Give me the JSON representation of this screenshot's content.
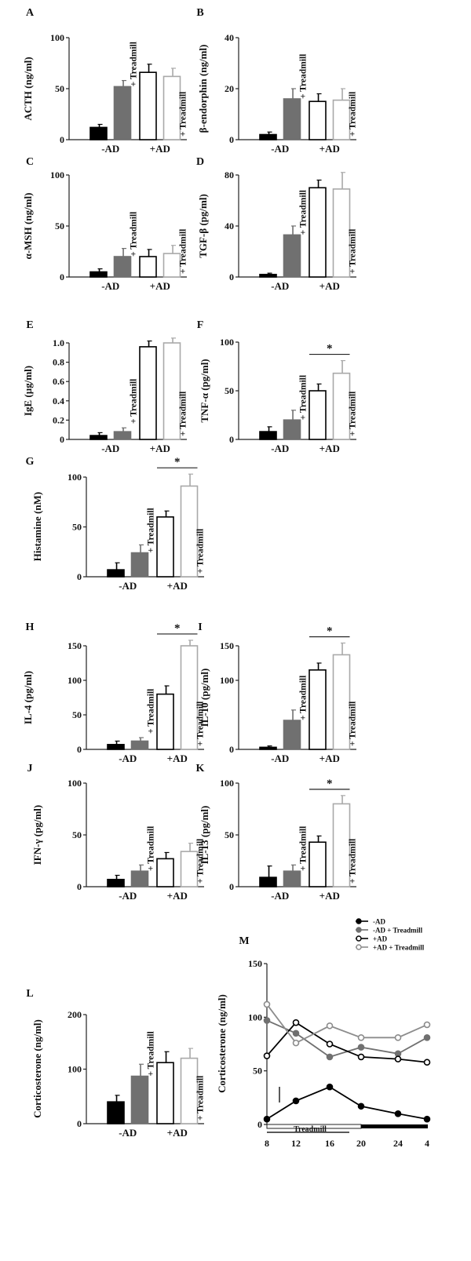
{
  "colors": {
    "black": "#000000",
    "dark_gray": "#707070",
    "mid_gray": "#8c8c8c",
    "light_gray": "#a9a9a9",
    "white": "#ffffff",
    "axis": "#222222"
  },
  "chart_data": [
    {
      "id": "A",
      "type": "bar",
      "panel_label": "A",
      "ylabel": "ACTH (ng/ml)",
      "ylim": [
        0,
        100
      ],
      "yticks": [
        0,
        50,
        100
      ],
      "ytick_labels": [
        "0",
        "50",
        "100"
      ],
      "group_labels": [
        "-AD",
        "+AD"
      ],
      "bar_labels": [
        "",
        "+ Treadmill",
        "",
        "+ Treadmill"
      ],
      "values": [
        12,
        52,
        66,
        62
      ],
      "errors": [
        3,
        6,
        8,
        8
      ],
      "significance": []
    },
    {
      "id": "B",
      "type": "bar",
      "panel_label": "B",
      "ylabel": "β-endorphin (ng/ml)",
      "ylim": [
        0,
        40
      ],
      "yticks": [
        0,
        20,
        40
      ],
      "ytick_labels": [
        "0",
        "20",
        "40"
      ],
      "group_labels": [
        "-AD",
        "+AD"
      ],
      "bar_labels": [
        "",
        "+ Treadmill",
        "",
        "+ Treadmill"
      ],
      "values": [
        2,
        16,
        15,
        15.5
      ],
      "errors": [
        1,
        4,
        3,
        4.5
      ],
      "significance": []
    },
    {
      "id": "C",
      "type": "bar",
      "panel_label": "C",
      "ylabel": "α-MSH (ng/ml)",
      "ylim": [
        0,
        100
      ],
      "yticks": [
        0,
        50,
        100
      ],
      "ytick_labels": [
        "0",
        "50",
        "100"
      ],
      "group_labels": [
        "-AD",
        "+AD"
      ],
      "bar_labels": [
        "",
        "+ Treadmill",
        "",
        "+ Treadmill"
      ],
      "values": [
        5,
        20,
        20,
        23
      ],
      "errors": [
        3,
        8,
        7,
        8
      ],
      "significance": []
    },
    {
      "id": "D",
      "type": "bar",
      "panel_label": "D",
      "ylabel": "TGF-β (pg/ml)",
      "ylim": [
        0,
        80
      ],
      "yticks": [
        0,
        40,
        80
      ],
      "ytick_labels": [
        "0",
        "40",
        "80"
      ],
      "group_labels": [
        "-AD",
        "+AD"
      ],
      "bar_labels": [
        "",
        "+ Treadmill",
        "",
        "+ Treadmill"
      ],
      "values": [
        2,
        33,
        70,
        69
      ],
      "errors": [
        1,
        7,
        6,
        13
      ],
      "significance": []
    },
    {
      "id": "E",
      "type": "bar",
      "panel_label": "E",
      "ylabel": "IgE (µg/ml)",
      "ylim": [
        0,
        1.0
      ],
      "yticks": [
        0,
        0.2,
        0.4,
        0.6,
        0.8,
        1.0
      ],
      "ytick_labels": [
        "0",
        "0.2",
        "0.4",
        "0.6",
        "0.8",
        "1.0"
      ],
      "group_labels": [
        "-AD",
        "+AD"
      ],
      "bar_labels": [
        "",
        "+ Treadmill",
        "",
        "+ Treadmill"
      ],
      "values": [
        0.04,
        0.08,
        0.96,
        1.0
      ],
      "errors": [
        0.03,
        0.04,
        0.06,
        0.05
      ],
      "significance": []
    },
    {
      "id": "F",
      "type": "bar",
      "panel_label": "F",
      "ylabel": "TNF-α (pg/ml)",
      "ylim": [
        0,
        100
      ],
      "yticks": [
        0,
        50,
        100
      ],
      "ytick_labels": [
        "0",
        "50",
        "100"
      ],
      "group_labels": [
        "-AD",
        "+AD"
      ],
      "bar_labels": [
        "",
        "+ Treadmill",
        "",
        "+ Treadmill"
      ],
      "values": [
        8,
        20,
        50,
        68
      ],
      "errors": [
        5,
        10,
        7,
        13
      ],
      "significance": [
        {
          "from": 2,
          "to": 3,
          "label": "*"
        }
      ]
    },
    {
      "id": "G",
      "type": "bar",
      "panel_label": "G",
      "ylabel": "Histamine (nM)",
      "ylim": [
        0,
        100
      ],
      "yticks": [
        0,
        50,
        100
      ],
      "ytick_labels": [
        "0",
        "50",
        "100"
      ],
      "group_labels": [
        "-AD",
        "+AD"
      ],
      "bar_labels": [
        "",
        "+ Treadmill",
        "",
        "+ Treadmill"
      ],
      "values": [
        7,
        24,
        60,
        91
      ],
      "errors": [
        7,
        8,
        6,
        12
      ],
      "significance": [
        {
          "from": 2,
          "to": 3,
          "label": "*"
        }
      ]
    },
    {
      "id": "H",
      "type": "bar",
      "panel_label": "H",
      "ylabel": "IL-4 (pg/ml)",
      "ylim": [
        0,
        150
      ],
      "yticks": [
        0,
        50,
        100,
        150
      ],
      "ytick_labels": [
        "0",
        "50",
        "100",
        "150"
      ],
      "group_labels": [
        "-AD",
        "+AD"
      ],
      "bar_labels": [
        "",
        "+ Treadmill",
        "",
        "+ Treadmill"
      ],
      "values": [
        7,
        12,
        80,
        150
      ],
      "errors": [
        5,
        5,
        12,
        8
      ],
      "significance": [
        {
          "from": 2,
          "to": 3,
          "label": "*"
        }
      ]
    },
    {
      "id": "I",
      "type": "bar",
      "panel_label": "I",
      "ylabel": "IL-10 (pg/ml)",
      "ylim": [
        0,
        150
      ],
      "yticks": [
        0,
        100,
        150
      ],
      "ytick_labels": [
        "0",
        "100",
        "150"
      ],
      "group_labels": [
        "-AD",
        "+AD"
      ],
      "bar_labels": [
        "",
        "+ Treadmill",
        "",
        "+ Treadmill"
      ],
      "values": [
        3,
        42,
        115,
        137
      ],
      "errors": [
        2,
        15,
        10,
        17
      ],
      "significance": [
        {
          "from": 2,
          "to": 3,
          "label": "*"
        }
      ]
    },
    {
      "id": "J",
      "type": "bar",
      "panel_label": "J",
      "ylabel": "IFN-γ (pg/ml)",
      "ylim": [
        0,
        100
      ],
      "yticks": [
        0,
        50,
        100
      ],
      "ytick_labels": [
        "0",
        "50",
        "100"
      ],
      "group_labels": [
        "-AD",
        "+AD"
      ],
      "bar_labels": [
        "",
        "+ Treadmill",
        "",
        "+ Treadmill"
      ],
      "values": [
        7,
        15,
        27,
        34
      ],
      "errors": [
        4,
        6,
        6,
        8
      ],
      "significance": []
    },
    {
      "id": "K",
      "type": "bar",
      "panel_label": "K",
      "ylabel": "IL-13 (pg/ml)",
      "ylim": [
        0,
        100
      ],
      "yticks": [
        0,
        50,
        100
      ],
      "ytick_labels": [
        "0",
        "50",
        "100"
      ],
      "group_labels": [
        "-AD",
        "+AD"
      ],
      "bar_labels": [
        "",
        "+ Treadmill",
        "",
        "+ Treadmill"
      ],
      "values": [
        9,
        15,
        43,
        80
      ],
      "errors": [
        11,
        6,
        6,
        8
      ],
      "significance": [
        {
          "from": 2,
          "to": 3,
          "label": "*"
        }
      ]
    },
    {
      "id": "L",
      "type": "bar",
      "panel_label": "L",
      "ylabel": "Corticosterone (ng/ml)",
      "ylim": [
        0,
        200
      ],
      "yticks": [
        0,
        100,
        200
      ],
      "ytick_labels": [
        "0",
        "100",
        "200"
      ],
      "group_labels": [
        "-AD",
        "+AD"
      ],
      "bar_labels": [
        "",
        "+ Treadmill",
        "",
        "+ Treadmill"
      ],
      "values": [
        40,
        87,
        112,
        120
      ],
      "errors": [
        12,
        22,
        20,
        18
      ],
      "significance": []
    },
    {
      "id": "M",
      "type": "line",
      "panel_label": "M",
      "ylabel": "Corticosterone (ng/ml)",
      "ylim": [
        0,
        150
      ],
      "yticks": [
        0,
        50,
        100,
        150
      ],
      "ytick_labels": [
        "0",
        "50",
        "100",
        "150"
      ],
      "x": [
        8,
        12,
        16,
        20,
        24,
        4
      ],
      "xtick_labels": [
        "8",
        "12",
        "16",
        "20",
        "24",
        "4"
      ],
      "treadmill_label": "Treadmill",
      "legend_position": "top-right",
      "series": [
        {
          "name": "-AD",
          "color": "#000000",
          "filled": true,
          "values": [
            5,
            22,
            35,
            17,
            10,
            5
          ]
        },
        {
          "name": "-AD + Treadmill",
          "color": "#707070",
          "filled": true,
          "values": [
            97,
            85,
            63,
            72,
            66,
            81
          ]
        },
        {
          "name": "+AD",
          "color": "#000000",
          "filled": false,
          "values": [
            64,
            95,
            75,
            63,
            61,
            58
          ]
        },
        {
          "name": "+AD + Treadmill",
          "color": "#8c8c8c",
          "filled": false,
          "values": [
            112,
            76,
            92,
            81,
            81,
            93
          ]
        }
      ]
    }
  ]
}
